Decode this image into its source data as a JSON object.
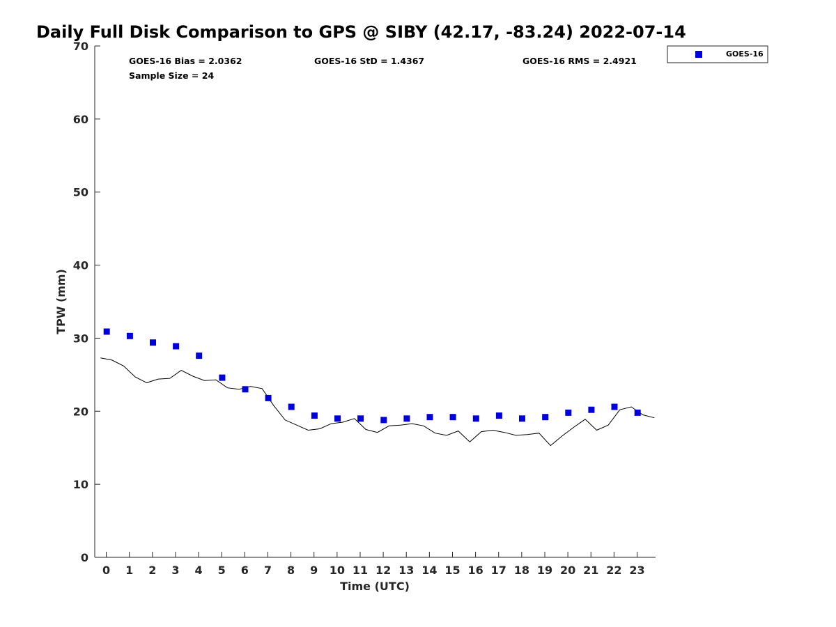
{
  "chart_data": {
    "type": "scatter",
    "title": "Daily Full Disk Comparison to GPS @ SIBY (42.17, -83.24) 2022-07-14",
    "xlabel": "Time (UTC)",
    "ylabel": "TPW (mm)",
    "xlim": [
      -0.5,
      23.8
    ],
    "ylim": [
      0,
      70
    ],
    "xticks": [
      0,
      1,
      2,
      3,
      4,
      5,
      6,
      7,
      8,
      9,
      10,
      11,
      12,
      13,
      14,
      15,
      16,
      17,
      18,
      19,
      20,
      21,
      22,
      23
    ],
    "xtick_labels": [
      "0",
      "1",
      "2",
      "3",
      "4",
      "5",
      "6",
      "7",
      "8",
      "9",
      "10",
      "11",
      "12",
      "13",
      "14",
      "15",
      "16",
      "17",
      "18",
      "19",
      "20",
      "21",
      "22",
      "23"
    ],
    "yticks": [
      0,
      10,
      20,
      30,
      40,
      50,
      60,
      70
    ],
    "ytick_labels": [
      "0",
      "10",
      "20",
      "30",
      "40",
      "50",
      "60",
      "70"
    ],
    "grid": false,
    "legend_position": "outside-top-right",
    "series": [
      {
        "name": "GOES-16",
        "type": "scatter",
        "color": "#0000dd",
        "marker": "square",
        "x": [
          0.02,
          1.02,
          2.02,
          3.02,
          4.02,
          5.02,
          6.02,
          7.02,
          8.02,
          9.02,
          10.02,
          11.02,
          12.02,
          13.02,
          14.02,
          15.02,
          16.02,
          17.02,
          18.02,
          19.02,
          20.02,
          21.02,
          22.02,
          23.02
        ],
        "y": [
          30.9,
          30.3,
          29.4,
          28.9,
          27.6,
          24.6,
          23.0,
          21.8,
          20.6,
          19.4,
          19.0,
          19.0,
          18.8,
          19.0,
          19.2,
          19.2,
          19.0,
          19.4,
          19.0,
          19.2,
          19.8,
          20.2,
          20.6,
          19.8
        ]
      },
      {
        "name": "GPS",
        "type": "line",
        "color": "#000000",
        "x": [
          -0.25,
          0.25,
          0.75,
          1.25,
          1.75,
          2.25,
          2.75,
          3.25,
          3.75,
          4.25,
          4.75,
          5.25,
          5.75,
          6.25,
          6.75,
          7.25,
          7.75,
          8.25,
          8.75,
          9.25,
          9.75,
          10.25,
          10.75,
          11.25,
          11.75,
          12.25,
          12.75,
          13.25,
          13.75,
          14.25,
          14.75,
          15.25,
          15.75,
          16.25,
          16.75,
          17.25,
          17.75,
          18.25,
          18.75,
          19.25,
          19.75,
          20.25,
          20.75,
          21.25,
          21.75,
          22.25,
          22.75,
          23.25,
          23.75
        ],
        "y": [
          27.3,
          27.0,
          26.2,
          24.7,
          23.9,
          24.4,
          24.5,
          25.6,
          24.8,
          24.2,
          24.3,
          23.2,
          23.0,
          23.4,
          23.1,
          20.8,
          18.8,
          18.1,
          17.4,
          17.6,
          18.3,
          18.5,
          19.0,
          17.5,
          17.1,
          18.0,
          18.1,
          18.3,
          18.0,
          17.0,
          16.7,
          17.3,
          15.8,
          17.2,
          17.4,
          17.1,
          16.7,
          16.8,
          17.0,
          15.3,
          16.6,
          17.8,
          18.9,
          17.4,
          18.1,
          20.2,
          20.6,
          19.5,
          19.1
        ]
      }
    ],
    "stats": {
      "bias": "GOES-16 Bias = 2.0362",
      "std": "GOES-16 StD = 1.4367",
      "rms": "GOES-16 RMS = 2.4921",
      "sample_size": "Sample Size = 24"
    },
    "legend": [
      {
        "label": "GOES-16",
        "color": "#0000dd",
        "marker": "square"
      }
    ]
  }
}
